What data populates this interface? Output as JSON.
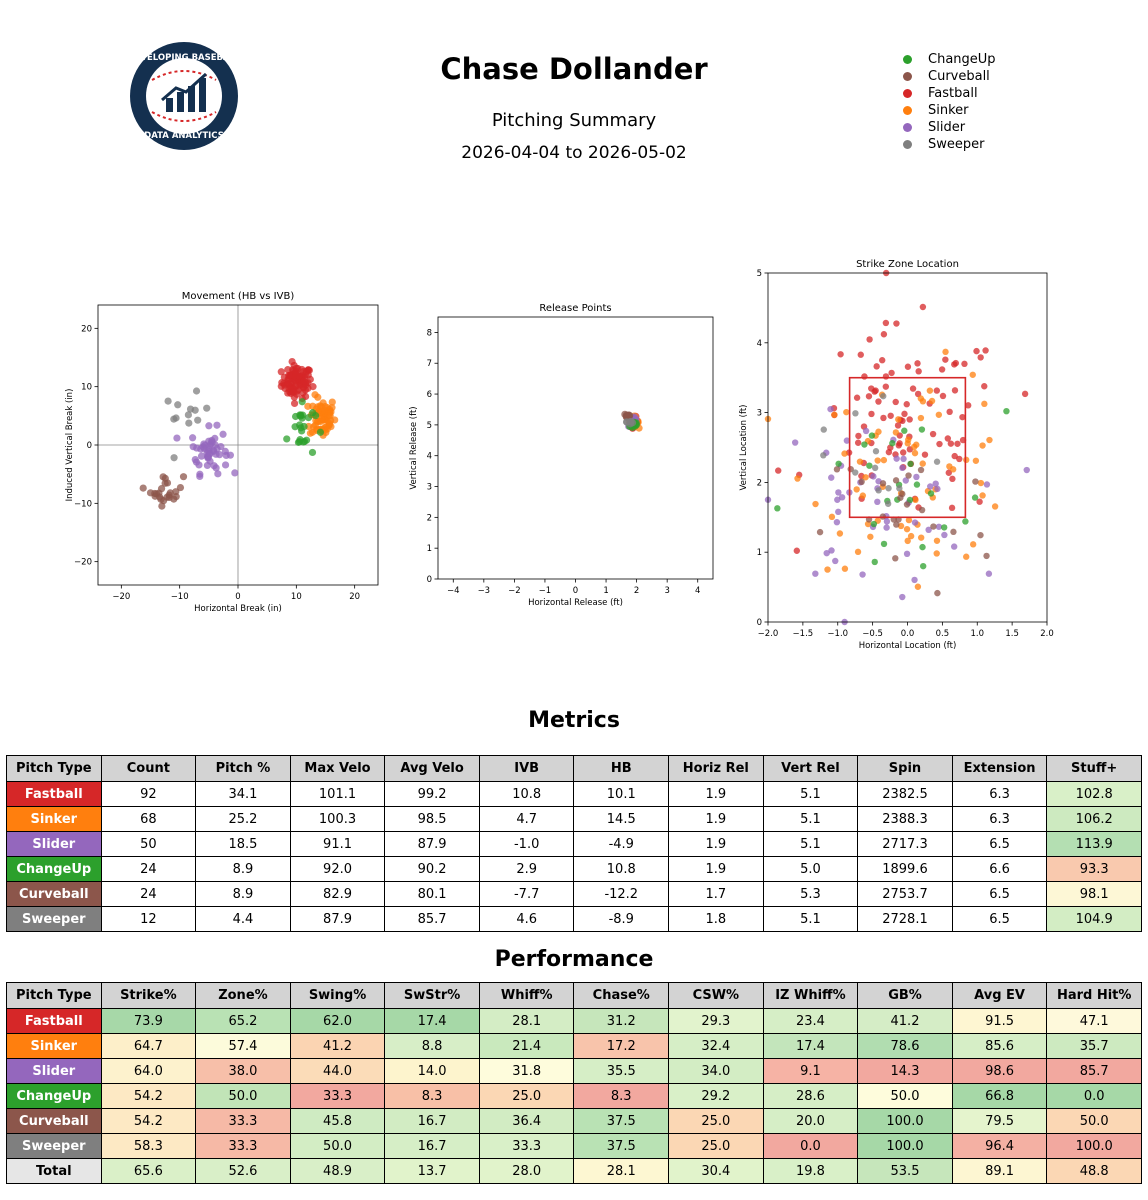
{
  "header": {
    "title": "Chase Dollander",
    "subtitle": "Pitching Summary",
    "date_range": "2026-04-04 to 2026-05-02",
    "logo": {
      "text_top": "DEVELOPING BASEBALL",
      "text_bottom": "DATA ANALYTICS",
      "icon": "baseball-chart-logo"
    }
  },
  "colors": {
    "ChangeUp": "#2ca02c",
    "Curveball": "#8c564b",
    "Fastball": "#d62728",
    "Sinker": "#ff7f0e",
    "Slider": "#9467bd",
    "Sweeper": "#7f7f7f"
  },
  "legend": [
    "ChangeUp",
    "Curveball",
    "Fastball",
    "Sinker",
    "Slider",
    "Sweeper"
  ],
  "chart_data": [
    {
      "type": "scatter",
      "title": "Movement (HB vs IVB)",
      "xlabel": "Horizontal Break (in)",
      "ylabel": "Induced Vertical Break (in)",
      "xlim": [
        -24,
        24
      ],
      "ylim": [
        -24,
        24
      ],
      "xticks": [
        -20,
        -10,
        0,
        10,
        20
      ],
      "yticks": [
        -20,
        -10,
        0,
        10,
        20
      ],
      "grid": false,
      "reference_lines": {
        "x": 0,
        "y": 0
      },
      "clusters": [
        {
          "name": "Fastball",
          "center": [
            10.1,
            10.8
          ],
          "spread": [
            1.3,
            1.4
          ],
          "n": 92
        },
        {
          "name": "Sinker",
          "center": [
            14.5,
            4.7
          ],
          "spread": [
            1.1,
            1.8
          ],
          "n": 68
        },
        {
          "name": "Slider",
          "center": [
            -4.9,
            -1.0
          ],
          "spread": [
            1.6,
            1.9
          ],
          "n": 50
        },
        {
          "name": "ChangeUp",
          "center": [
            10.8,
            2.9
          ],
          "spread": [
            1.2,
            2.6
          ],
          "n": 24
        },
        {
          "name": "Curveball",
          "center": [
            -12.2,
            -7.7
          ],
          "spread": [
            1.4,
            1.3
          ],
          "n": 24
        },
        {
          "name": "Sweeper",
          "center": [
            -8.9,
            4.6
          ],
          "spread": [
            2.0,
            2.0
          ],
          "n": 12
        }
      ]
    },
    {
      "type": "scatter",
      "title": "Release Points",
      "xlabel": "Horizontal Release (ft)",
      "ylabel": "Vertical Release (ft)",
      "xlim": [
        -4.5,
        4.5
      ],
      "ylim": [
        0,
        8.5
      ],
      "xticks": [
        -4,
        -3,
        -2,
        -1,
        0,
        1,
        2,
        3,
        4
      ],
      "yticks": [
        0,
        1,
        2,
        3,
        4,
        5,
        6,
        7,
        8
      ],
      "grid": false,
      "clusters": [
        {
          "name": "Fastball",
          "center": [
            1.9,
            5.1
          ],
          "spread": [
            0.08,
            0.08
          ],
          "n": 30
        },
        {
          "name": "Sinker",
          "center": [
            1.9,
            5.1
          ],
          "spread": [
            0.08,
            0.08
          ],
          "n": 20
        },
        {
          "name": "Slider",
          "center": [
            1.9,
            5.1
          ],
          "spread": [
            0.08,
            0.08
          ],
          "n": 15
        },
        {
          "name": "ChangeUp",
          "center": [
            1.9,
            5.0
          ],
          "spread": [
            0.08,
            0.08
          ],
          "n": 10
        },
        {
          "name": "Curveball",
          "center": [
            1.7,
            5.3
          ],
          "spread": [
            0.06,
            0.05
          ],
          "n": 10
        },
        {
          "name": "Sweeper",
          "center": [
            1.8,
            5.1
          ],
          "spread": [
            0.06,
            0.06
          ],
          "n": 6
        }
      ]
    },
    {
      "type": "scatter",
      "title": "Strike Zone Location",
      "xlabel": "Horizontal Location (ft)",
      "ylabel": "Vertical Location (ft)",
      "xlim": [
        -2.0,
        2.0
      ],
      "ylim": [
        0,
        5
      ],
      "xticks": [
        -2.0,
        -1.5,
        -1.0,
        -0.5,
        0.0,
        0.5,
        1.0,
        1.5,
        2.0
      ],
      "yticks": [
        0,
        1,
        2,
        3,
        4,
        5
      ],
      "grid": false,
      "strike_zone": {
        "x": [
          -0.83,
          0.83
        ],
        "y": [
          1.5,
          3.5
        ]
      },
      "clusters": [
        {
          "name": "Fastball",
          "center": [
            0.0,
            2.8
          ],
          "spread": [
            0.7,
            0.7
          ],
          "n": 92
        },
        {
          "name": "Sinker",
          "center": [
            0.1,
            2.2
          ],
          "spread": [
            0.75,
            0.7
          ],
          "n": 68
        },
        {
          "name": "Slider",
          "center": [
            -0.5,
            1.7
          ],
          "spread": [
            0.7,
            0.6
          ],
          "n": 50
        },
        {
          "name": "ChangeUp",
          "center": [
            -0.2,
            1.6
          ],
          "spread": [
            0.8,
            0.7
          ],
          "n": 24
        },
        {
          "name": "Curveball",
          "center": [
            0.0,
            1.5
          ],
          "spread": [
            0.6,
            0.6
          ],
          "n": 24
        },
        {
          "name": "Sweeper",
          "center": [
            -0.6,
            2.3
          ],
          "spread": [
            0.6,
            0.7
          ],
          "n": 12
        }
      ]
    }
  ],
  "metrics": {
    "title": "Metrics",
    "columns": [
      "Pitch Type",
      "Count",
      "Pitch %",
      "Max Velo",
      "Avg Velo",
      "IVB",
      "HB",
      "Horiz Rel",
      "Vert Rel",
      "Spin",
      "Extension",
      "Stuff+"
    ],
    "rows": [
      {
        "pitch": "Fastball",
        "values": [
          "92",
          "34.1",
          "101.1",
          "99.2",
          "10.8",
          "10.1",
          "1.9",
          "5.1",
          "2382.5",
          "6.3",
          "102.8"
        ],
        "stuff_color": "#d9f0c8"
      },
      {
        "pitch": "Sinker",
        "values": [
          "68",
          "25.2",
          "100.3",
          "98.5",
          "4.7",
          "14.5",
          "1.9",
          "5.1",
          "2388.3",
          "6.3",
          "106.2"
        ],
        "stuff_color": "#cdeac0"
      },
      {
        "pitch": "Slider",
        "values": [
          "50",
          "18.5",
          "91.1",
          "87.9",
          "-1.0",
          "-4.9",
          "1.9",
          "5.1",
          "2717.3",
          "6.5",
          "113.9"
        ],
        "stuff_color": "#b4dfb2"
      },
      {
        "pitch": "ChangeUp",
        "values": [
          "24",
          "8.9",
          "92.0",
          "90.2",
          "2.9",
          "10.8",
          "1.9",
          "5.0",
          "1899.6",
          "6.6",
          "93.3"
        ],
        "stuff_color": "#f9c9ae"
      },
      {
        "pitch": "Curveball",
        "values": [
          "24",
          "8.9",
          "82.9",
          "80.1",
          "-7.7",
          "-12.2",
          "1.7",
          "5.3",
          "2753.7",
          "6.5",
          "98.1"
        ],
        "stuff_color": "#fdf7d6"
      },
      {
        "pitch": "Sweeper",
        "values": [
          "12",
          "4.4",
          "87.9",
          "85.7",
          "4.6",
          "-8.9",
          "1.8",
          "5.1",
          "2728.1",
          "6.5",
          "104.9"
        ],
        "stuff_color": "#d3edc4"
      }
    ]
  },
  "performance": {
    "title": "Performance",
    "columns": [
      "Pitch Type",
      "Strike%",
      "Zone%",
      "Swing%",
      "SwStr%",
      "Whiff%",
      "Chase%",
      "CSW%",
      "IZ Whiff%",
      "GB%",
      "Avg EV",
      "Hard Hit%"
    ],
    "rows": [
      {
        "pitch": "Fastball",
        "values": [
          "73.9",
          "65.2",
          "62.0",
          "17.4",
          "28.1",
          "31.2",
          "29.3",
          "23.4",
          "41.2",
          "91.5",
          "47.1"
        ],
        "cell_colors": [
          "#a7d8a8",
          "#b9e2b4",
          "#a6d8a7",
          "#a6d8a7",
          "#d4edc5",
          "#c6e6bb",
          "#e2f3cd",
          "#d6eec6",
          "#d5edc6",
          "#fef6d2",
          "#fef9db"
        ]
      },
      {
        "pitch": "Sinker",
        "values": [
          "64.7",
          "57.4",
          "41.2",
          "8.8",
          "21.4",
          "17.2",
          "32.4",
          "17.4",
          "78.6",
          "85.6",
          "35.7"
        ],
        "cell_colors": [
          "#fdefc9",
          "#fcfbdb",
          "#fbd4b2",
          "#d7eec7",
          "#c9e9bd",
          "#f8c4ab",
          "#d6eec6",
          "#c3e5bb",
          "#b1ddb0",
          "#d6eec6",
          "#cdeac0"
        ]
      },
      {
        "pitch": "Slider",
        "values": [
          "64.0",
          "38.0",
          "44.0",
          "14.0",
          "31.8",
          "35.5",
          "34.0",
          "9.1",
          "14.3",
          "98.6",
          "85.7"
        ],
        "cell_colors": [
          "#fdf2cd",
          "#f7bfa9",
          "#fbdcb8",
          "#fdf4cd",
          "#fefcdc",
          "#d6eec6",
          "#d3edc4",
          "#f6b3a5",
          "#f2a89f",
          "#f2a89f",
          "#f2a89f"
        ]
      },
      {
        "pitch": "ChangeUp",
        "values": [
          "54.2",
          "50.0",
          "33.3",
          "8.3",
          "25.0",
          "8.3",
          "29.2",
          "28.6",
          "50.0",
          "66.8",
          "0.0"
        ],
        "cell_colors": [
          "#fde9c4",
          "#c1e4b7",
          "#f2a89f",
          "#f8c0a7",
          "#fbd7b4",
          "#f2a89f",
          "#d9f0c8",
          "#d6eec6",
          "#fefcdc",
          "#a6d8a7",
          "#a6d8a7"
        ]
      },
      {
        "pitch": "Curveball",
        "values": [
          "54.2",
          "33.3",
          "45.8",
          "16.7",
          "36.4",
          "37.5",
          "25.0",
          "20.0",
          "100.0",
          "79.5",
          "50.0"
        ],
        "cell_colors": [
          "#fde9c4",
          "#f6b9a6",
          "#cfebc2",
          "#d2ecc3",
          "#d2ecc3",
          "#b9e2b4",
          "#fbd7b4",
          "#d6eec6",
          "#a6d8a7",
          "#e5f4cd",
          "#fbd7b4"
        ]
      },
      {
        "pitch": "Sweeper",
        "values": [
          "58.3",
          "33.3",
          "50.0",
          "16.7",
          "33.3",
          "37.5",
          "25.0",
          "0.0",
          "100.0",
          "96.4",
          "100.0"
        ],
        "cell_colors": [
          "#fde9c4",
          "#f6b9a6",
          "#d3edc4",
          "#d6eec6",
          "#d9f0c8",
          "#b9e2b4",
          "#fbd7b4",
          "#f2a89f",
          "#a6d8a7",
          "#f4b0a3",
          "#f2a89f"
        ]
      }
    ],
    "total": {
      "label": "Total",
      "values": [
        "65.6",
        "52.6",
        "48.9",
        "13.7",
        "28.0",
        "28.1",
        "30.4",
        "19.8",
        "53.5",
        "89.1",
        "48.8"
      ],
      "cell_colors": [
        "#daf0c8",
        "#d9efc8",
        "#d9efc8",
        "#e1f3cb",
        "#e1f3cb",
        "#fdf7d2",
        "#e1f3cb",
        "#d9f0c8",
        "#c6e6bb",
        "#fdf6d2",
        "#fbd7b4"
      ]
    }
  }
}
